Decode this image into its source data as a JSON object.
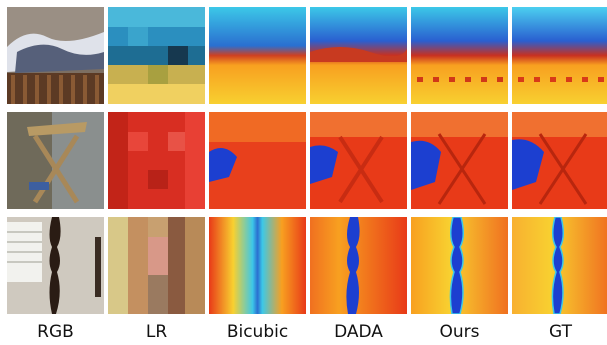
{
  "columns": [
    "RGB",
    "LR",
    "Bicubic",
    "DADA",
    "Ours",
    "GT"
  ],
  "rows": [
    {
      "scene": "bedroom-bed"
    },
    {
      "scene": "folding-table"
    },
    {
      "scene": "bedpost-window"
    }
  ],
  "colors": {
    "depth_near": "#f8c020",
    "depth_mid": "#e83020",
    "depth_far": "#1c3fd0",
    "depth_cyan": "#3cc8e8"
  }
}
